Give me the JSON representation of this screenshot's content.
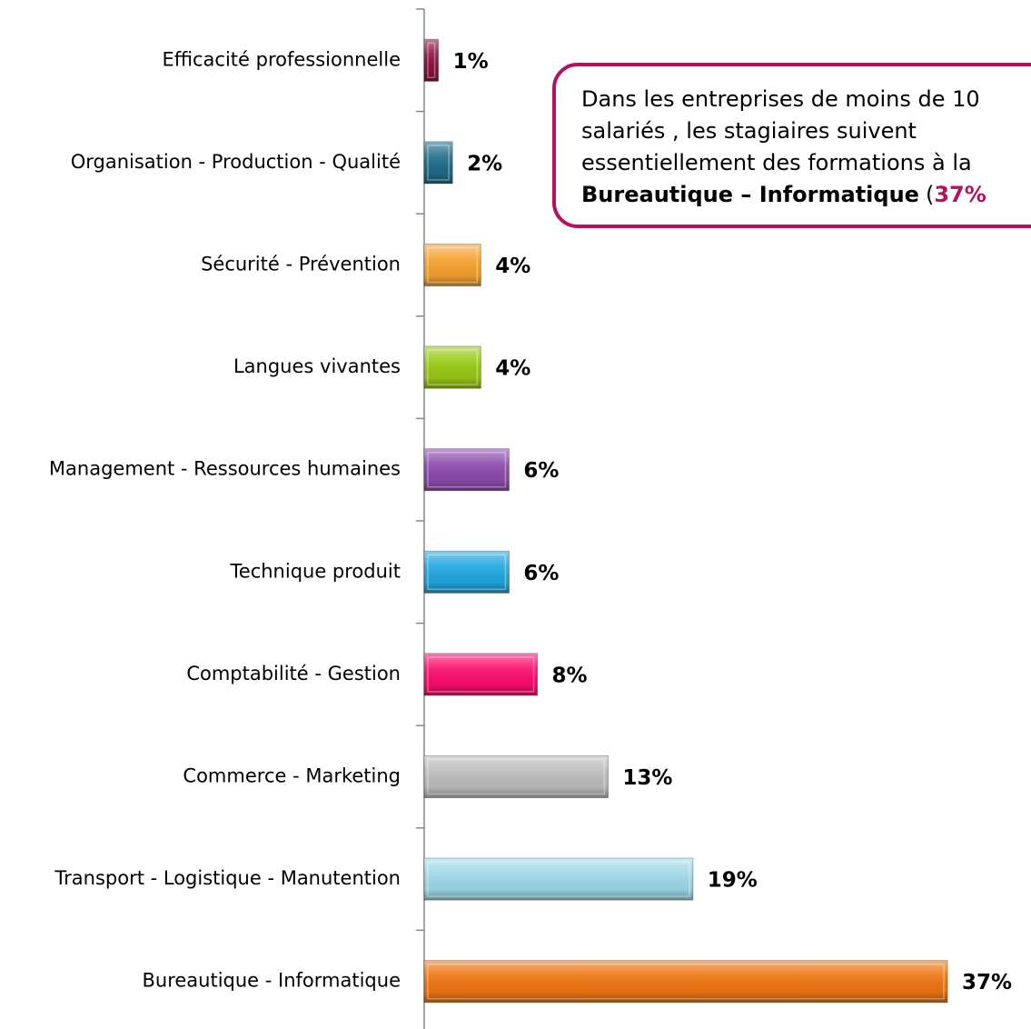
{
  "chart_data": {
    "type": "barh",
    "categories": [
      "Efficacité professionnelle",
      "Organisation - Production - Qualité",
      "Sécurité - Prévention",
      "Langues vivantes",
      "Management - Ressources humaines",
      "Technique produit",
      "Comptabilité - Gestion",
      "Commerce - Marketing",
      "Transport - Logistique - Manutention",
      "Bureautique - Informatique"
    ],
    "values": [
      1,
      2,
      4,
      4,
      6,
      6,
      8,
      13,
      19,
      37
    ],
    "value_labels": [
      "1%",
      "2%",
      "4%",
      "4%",
      "6%",
      "6%",
      "8%",
      "13%",
      "19%",
      "37%"
    ],
    "colors": [
      "#8e1040",
      "#1e6c88",
      "#f5a02e",
      "#98c814",
      "#8c4aae",
      "#1fa6de",
      "#fb0c6c",
      "#bcbcbc",
      "#9ed8e8",
      "#ee7410"
    ],
    "xlim": [
      0,
      37
    ],
    "annotation": {
      "lines": [
        "Dans les entreprises de moins de 10",
        "salariés , les stagiaires suivent",
        "essentiellement des formations à la"
      ],
      "bold": "Bureautique – Informatique",
      "paren": "(",
      "highlight": "37%"
    }
  }
}
